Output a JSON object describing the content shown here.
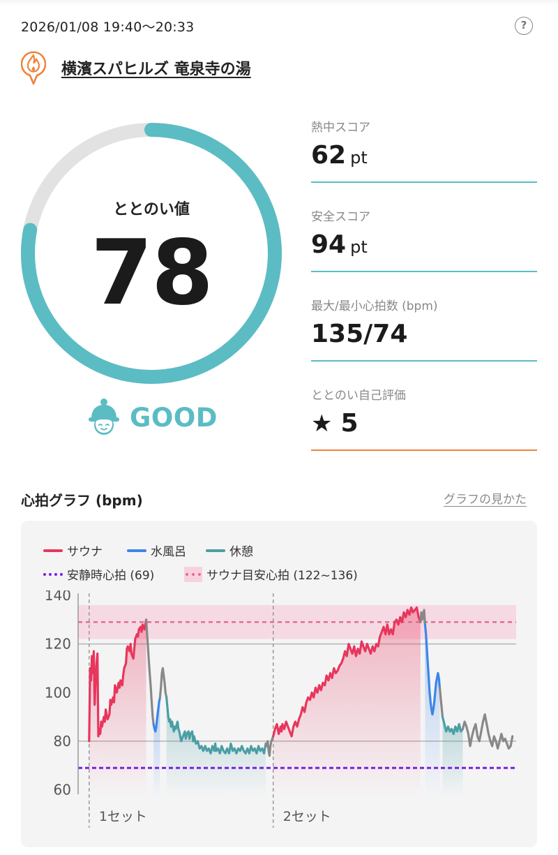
{
  "header": {
    "datetime": "2026/01/08 19:40～20:33",
    "help_icon": "question-circle-icon"
  },
  "facility": {
    "name": "横濱スパヒルズ 竜泉寺の湯",
    "icon": "flame-pin-icon",
    "accent_color": "#f0823b"
  },
  "totonoi": {
    "label": "ととのい値",
    "value": "78",
    "progress": 0.78,
    "ring_color": "#5bbcc4",
    "track_color": "#e2e2e2",
    "rating_icon": "sauna-hat-face-icon",
    "rating": "GOOD"
  },
  "metrics": [
    {
      "label": "熱中スコア",
      "value": "62",
      "unit": "pt"
    },
    {
      "label": "安全スコア",
      "value": "94",
      "unit": "pt"
    },
    {
      "label": "最大/最小心拍数 (bpm)",
      "value": "135/74",
      "unit": ""
    },
    {
      "label": "ととのい自己評価",
      "value": "5",
      "unit": "",
      "icon": "star-icon"
    }
  ],
  "graph": {
    "title": "心拍グラフ (bpm)",
    "link": "グラフの見かた"
  },
  "chart_data": {
    "type": "line",
    "ylim": [
      57,
      142
    ],
    "y_ticks": [
      60,
      80,
      100,
      120,
      140
    ],
    "grid": "horizontal lines at 80 and 120",
    "legend": [
      {
        "name": "サウナ",
        "color": "#e8365c",
        "style": "line"
      },
      {
        "name": "水風呂",
        "color": "#3b86e8",
        "style": "line"
      },
      {
        "name": "休憩",
        "color": "#4a9ea4",
        "style": "line"
      },
      {
        "name": "安静時心拍 (69)",
        "color": "#7a1fe6",
        "style": "dotted"
      },
      {
        "name": "サウナ目安心拍 (122~136)",
        "color": "#e36d8f",
        "style": "band"
      }
    ],
    "resting_hr": 69,
    "sauna_band": {
      "min": 122,
      "max": 136,
      "mid": 129
    },
    "sets": [
      {
        "label": "1セット",
        "start_x": 0
      },
      {
        "label": "2セット",
        "start_x": 100
      }
    ],
    "x_range": [
      -6,
      232
    ],
    "segments": [
      {
        "type": "sauna",
        "points": [
          [
            0,
            80
          ],
          [
            0.5,
            110
          ],
          [
            1,
            105
          ],
          [
            1.5,
            115
          ],
          [
            2,
            108
          ],
          [
            2.5,
            117
          ],
          [
            3,
            95
          ],
          [
            3.5,
            105
          ],
          [
            4,
            112
          ],
          [
            4.5,
            116
          ],
          [
            5,
            82
          ],
          [
            5.5,
            85
          ],
          [
            6,
            83
          ],
          [
            6.5,
            88
          ],
          [
            7,
            86
          ],
          [
            8,
            90
          ],
          [
            8.5,
            88
          ],
          [
            9,
            93
          ],
          [
            10,
            89
          ],
          [
            11,
            91
          ],
          [
            11.5,
            97
          ],
          [
            12,
            95
          ],
          [
            13,
            98
          ],
          [
            13.5,
            96
          ],
          [
            14,
            103
          ],
          [
            15,
            100
          ],
          [
            16,
            104
          ],
          [
            16.5,
            102
          ],
          [
            17,
            105
          ],
          [
            18,
            103
          ],
          [
            18.5,
            107
          ],
          [
            19,
            110
          ],
          [
            20,
            112
          ],
          [
            20.5,
            118
          ],
          [
            21,
            119
          ],
          [
            22,
            117
          ],
          [
            22.5,
            120
          ],
          [
            23,
            116
          ],
          [
            24,
            114
          ],
          [
            24.5,
            118
          ],
          [
            25,
            122
          ],
          [
            26,
            124
          ],
          [
            26.5,
            123
          ],
          [
            27,
            126
          ],
          [
            28,
            127
          ],
          [
            28.5,
            125
          ],
          [
            29,
            128
          ],
          [
            30,
            126
          ],
          [
            31,
            130
          ]
        ]
      },
      {
        "type": "transition",
        "points": [
          [
            31,
            130
          ],
          [
            31.5,
            124
          ],
          [
            32,
            118
          ],
          [
            32.5,
            112
          ],
          [
            33,
            107
          ],
          [
            33.5,
            102
          ],
          [
            34,
            96
          ],
          [
            34.5,
            90
          ],
          [
            35,
            87
          ]
        ]
      },
      {
        "type": "cold",
        "points": [
          [
            35,
            87
          ],
          [
            35.5,
            85
          ],
          [
            36,
            84
          ],
          [
            36.5,
            86
          ],
          [
            37,
            90
          ],
          [
            37.5,
            93
          ],
          [
            38,
            96
          ],
          [
            38.5,
            98
          ]
        ]
      },
      {
        "type": "transition",
        "points": [
          [
            38.5,
            98
          ],
          [
            39,
            102
          ],
          [
            39.5,
            108
          ],
          [
            40,
            110
          ],
          [
            40.5,
            107
          ],
          [
            41,
            104
          ],
          [
            41.5,
            100
          ],
          [
            42,
            98
          ]
        ]
      },
      {
        "type": "rest",
        "points": [
          [
            42,
            98
          ],
          [
            42.5,
            94
          ],
          [
            43,
            90
          ],
          [
            43.5,
            88
          ],
          [
            44,
            89
          ],
          [
            44.5,
            86
          ],
          [
            45,
            88
          ],
          [
            46,
            84
          ],
          [
            46.5,
            86
          ],
          [
            47,
            85
          ],
          [
            48,
            88
          ],
          [
            48.5,
            85
          ],
          [
            49,
            84
          ],
          [
            49.5,
            82
          ],
          [
            50,
            80
          ],
          [
            51,
            82
          ],
          [
            52,
            84
          ],
          [
            52.5,
            81
          ],
          [
            53,
            83
          ],
          [
            54,
            84
          ],
          [
            54.5,
            81
          ],
          [
            55,
            83
          ],
          [
            56,
            84
          ],
          [
            56.5,
            80
          ],
          [
            57,
            82
          ],
          [
            58,
            79
          ],
          [
            59,
            80
          ],
          [
            60,
            77
          ],
          [
            61,
            78
          ],
          [
            62,
            76
          ],
          [
            63,
            78
          ],
          [
            64,
            76
          ],
          [
            65,
            77
          ],
          [
            66,
            75
          ],
          [
            67,
            78
          ],
          [
            68,
            76
          ],
          [
            68.5,
            79
          ],
          [
            69,
            76
          ],
          [
            70,
            77
          ],
          [
            71,
            75
          ],
          [
            72,
            78
          ],
          [
            73,
            76
          ],
          [
            74,
            75
          ],
          [
            75,
            77
          ],
          [
            76,
            75
          ],
          [
            77,
            79
          ],
          [
            78,
            76
          ],
          [
            79,
            77
          ],
          [
            80,
            75
          ],
          [
            81,
            77
          ],
          [
            82,
            76
          ],
          [
            83,
            78
          ],
          [
            84,
            76
          ],
          [
            85,
            75
          ],
          [
            86,
            77
          ],
          [
            87,
            75
          ],
          [
            88,
            78
          ],
          [
            89,
            76
          ],
          [
            90,
            77
          ],
          [
            91,
            75
          ],
          [
            92,
            78
          ],
          [
            93,
            76
          ],
          [
            94,
            77
          ],
          [
            95,
            75
          ],
          [
            96,
            79
          ]
        ]
      },
      {
        "type": "transition",
        "points": [
          [
            96,
            79
          ],
          [
            96.5,
            78
          ],
          [
            97,
            80
          ],
          [
            97.5,
            76
          ],
          [
            98,
            74
          ],
          [
            98.5,
            78
          ],
          [
            99,
            80
          ],
          [
            100,
            82
          ]
        ]
      },
      {
        "type": "sauna",
        "points": [
          [
            100,
            82
          ],
          [
            101,
            85
          ],
          [
            102,
            87
          ],
          [
            103,
            83
          ],
          [
            104,
            86
          ],
          [
            104.5,
            84
          ],
          [
            105,
            87
          ],
          [
            106,
            85
          ],
          [
            107,
            88
          ],
          [
            108,
            86
          ],
          [
            109,
            84
          ],
          [
            110,
            82
          ],
          [
            111,
            86
          ],
          [
            112,
            88
          ],
          [
            113,
            86
          ],
          [
            114,
            89
          ],
          [
            115,
            91
          ],
          [
            116,
            94
          ],
          [
            117,
            92
          ],
          [
            118,
            96
          ],
          [
            119,
            98
          ],
          [
            120,
            97
          ],
          [
            121,
            100
          ],
          [
            122,
            98
          ],
          [
            123,
            102
          ],
          [
            124,
            100
          ],
          [
            125,
            103
          ],
          [
            126,
            101
          ],
          [
            127,
            104
          ],
          [
            128,
            103
          ],
          [
            129,
            107
          ],
          [
            130,
            105
          ],
          [
            131,
            108
          ],
          [
            132,
            106
          ],
          [
            133,
            110
          ],
          [
            134,
            108
          ],
          [
            135,
            109
          ],
          [
            136,
            111
          ],
          [
            137,
            112
          ],
          [
            138,
            114
          ],
          [
            139,
            117
          ],
          [
            140,
            115
          ],
          [
            141,
            120
          ],
          [
            142,
            118
          ],
          [
            143,
            116
          ],
          [
            144,
            119
          ],
          [
            145,
            115
          ],
          [
            146,
            118
          ],
          [
            147,
            116
          ],
          [
            148,
            121
          ],
          [
            149,
            119
          ],
          [
            150,
            117
          ],
          [
            151,
            120
          ],
          [
            152,
            118
          ],
          [
            153,
            116
          ],
          [
            154,
            119
          ],
          [
            155,
            117
          ],
          [
            156,
            120
          ],
          [
            157,
            119
          ],
          [
            158,
            123
          ],
          [
            159,
            125
          ],
          [
            160,
            127
          ],
          [
            161,
            124
          ],
          [
            162,
            128
          ],
          [
            163,
            124
          ],
          [
            164,
            126
          ],
          [
            165,
            124
          ],
          [
            166,
            129
          ],
          [
            167,
            130
          ],
          [
            168,
            128
          ],
          [
            169,
            131
          ],
          [
            170,
            129
          ],
          [
            171,
            133
          ],
          [
            172,
            131
          ],
          [
            173,
            134
          ],
          [
            174,
            132
          ],
          [
            175,
            135
          ],
          [
            176,
            133
          ],
          [
            177,
            134
          ],
          [
            178,
            135
          ],
          [
            179,
            131
          ],
          [
            180,
            129
          ]
        ]
      },
      {
        "type": "transition",
        "points": [
          [
            180,
            129
          ],
          [
            180.5,
            133
          ],
          [
            181,
            130
          ],
          [
            182,
            134
          ],
          [
            182.5,
            128
          ]
        ]
      },
      {
        "type": "cold",
        "points": [
          [
            182.5,
            128
          ],
          [
            183,
            124
          ],
          [
            183.5,
            118
          ],
          [
            184,
            112
          ],
          [
            184.5,
            106
          ],
          [
            185,
            100
          ],
          [
            185.5,
            96
          ],
          [
            186,
            93
          ],
          [
            186.5,
            91
          ],
          [
            187,
            93
          ],
          [
            187.5,
            96
          ],
          [
            188,
            100
          ],
          [
            188.5,
            104
          ],
          [
            189,
            106
          ],
          [
            189.5,
            108
          ],
          [
            190,
            106
          ],
          [
            190.5,
            102
          ]
        ]
      },
      {
        "type": "transition",
        "points": [
          [
            190.5,
            102
          ],
          [
            191,
            98
          ],
          [
            191.5,
            94
          ],
          [
            192,
            90
          ]
        ]
      },
      {
        "type": "rest",
        "points": [
          [
            192,
            90
          ],
          [
            193,
            87
          ],
          [
            194,
            84
          ],
          [
            195,
            86
          ],
          [
            196,
            84
          ],
          [
            197,
            85
          ],
          [
            198,
            83
          ],
          [
            199,
            86
          ],
          [
            200,
            84
          ],
          [
            201,
            87
          ],
          [
            202,
            84
          ],
          [
            203,
            85
          ]
        ]
      },
      {
        "type": "transition",
        "points": [
          [
            203,
            85
          ],
          [
            204,
            88
          ],
          [
            205,
            86
          ],
          [
            206,
            83
          ],
          [
            207,
            78
          ],
          [
            208,
            82
          ],
          [
            209,
            85
          ],
          [
            210,
            87
          ],
          [
            211,
            82
          ],
          [
            212,
            80
          ],
          [
            213,
            84
          ],
          [
            214,
            88
          ],
          [
            215,
            91
          ],
          [
            216,
            87
          ],
          [
            217,
            83
          ],
          [
            218,
            80
          ],
          [
            219,
            78
          ],
          [
            220,
            82
          ],
          [
            221,
            80
          ],
          [
            222,
            77
          ],
          [
            223,
            80
          ],
          [
            224,
            83
          ],
          [
            225,
            80
          ],
          [
            226,
            81
          ],
          [
            227,
            79
          ],
          [
            228,
            77
          ],
          [
            229,
            78
          ],
          [
            230,
            82
          ]
        ]
      }
    ]
  }
}
